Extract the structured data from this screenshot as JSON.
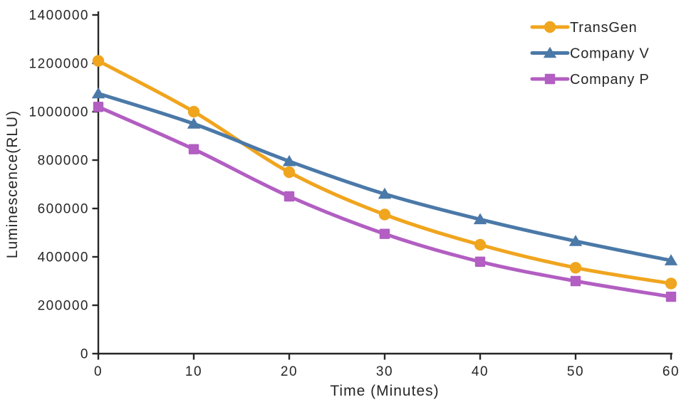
{
  "chart_data": {
    "type": "line",
    "title": "",
    "xlabel": "Time (Minutes)",
    "ylabel": "Luminescence(RLU)",
    "x": [
      0,
      10,
      20,
      30,
      40,
      50,
      60
    ],
    "xlim": [
      0,
      60
    ],
    "ylim": [
      0,
      1400000
    ],
    "x_ticks": [
      0,
      10,
      20,
      30,
      40,
      50,
      60
    ],
    "y_ticks": [
      0,
      200000,
      400000,
      600000,
      800000,
      1000000,
      1200000,
      1400000
    ],
    "grid": false,
    "legend_position": "top-right",
    "line_smoothing": true,
    "series": [
      {
        "name": "TransGen",
        "color": "#F0A51E",
        "marker": "circle",
        "values": [
          1210000,
          1000000,
          750000,
          575000,
          450000,
          355000,
          290000
        ]
      },
      {
        "name": "Company V",
        "color": "#4B79A8",
        "marker": "triangle",
        "values": [
          1075000,
          950000,
          795000,
          660000,
          555000,
          465000,
          385000
        ]
      },
      {
        "name": "Company P",
        "color": "#B25EC2",
        "marker": "square",
        "values": [
          1020000,
          845000,
          650000,
          495000,
          380000,
          300000,
          235000
        ]
      }
    ]
  },
  "styles": {
    "axis_color": "#262626",
    "text_color": "#262626",
    "background": "#FFFFFF",
    "line_width": 5,
    "marker_size": 17
  }
}
